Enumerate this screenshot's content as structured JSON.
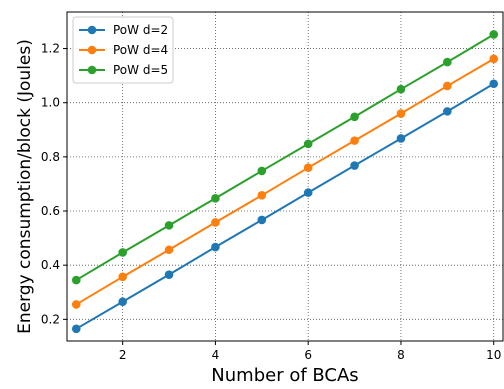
{
  "chart_data": {
    "type": "line",
    "title": "",
    "xlabel": "Number of BCAs",
    "ylabel": "Energy consumption/block (Joules)",
    "xlim": [
      0.8,
      10.2
    ],
    "ylim": [
      0.12,
      1.335
    ],
    "xticks": [
      2,
      4,
      6,
      8,
      10
    ],
    "yticks": [
      0.2,
      0.4,
      0.6,
      0.8,
      1.0,
      1.2
    ],
    "ytick_labels": [
      "0.2",
      "0.4",
      "0.6",
      "0.8",
      "1.0",
      "1.2"
    ],
    "grid": true,
    "grid_style": "dotted",
    "legend_position": "upper-left",
    "x": [
      1,
      2,
      3,
      4,
      5,
      6,
      7,
      8,
      9,
      10
    ],
    "series": [
      {
        "name": "PoW d=2",
        "color": "#1f77b4",
        "values": [
          0.165,
          0.265,
          0.365,
          0.467,
          0.567,
          0.668,
          0.768,
          0.868,
          0.968,
          1.07
        ]
      },
      {
        "name": "PoW d=4",
        "color": "#ff7f0e",
        "values": [
          0.255,
          0.357,
          0.457,
          0.558,
          0.658,
          0.76,
          0.86,
          0.96,
          1.062,
          1.162
        ]
      },
      {
        "name": "PoW d=5",
        "color": "#2ca02c",
        "values": [
          0.345,
          0.447,
          0.547,
          0.647,
          0.748,
          0.848,
          0.948,
          1.05,
          1.15,
          1.252
        ]
      }
    ]
  }
}
